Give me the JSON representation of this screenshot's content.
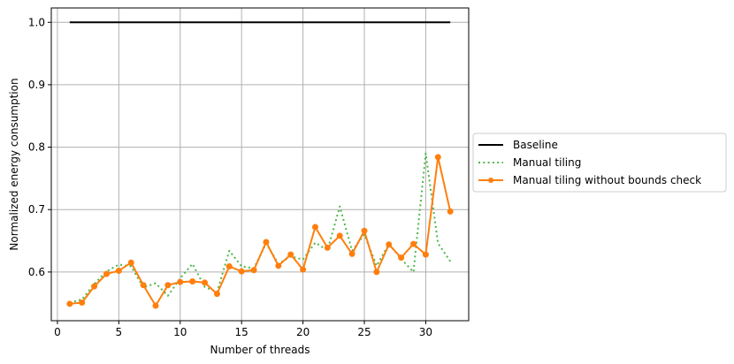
{
  "chart_data": {
    "type": "line",
    "xlabel": "Number of threads",
    "ylabel": "Normalized energy consumption",
    "xlim": [
      -0.5,
      33.5
    ],
    "ylim": [
      0.522,
      1.023
    ],
    "xticks": [
      0,
      5,
      10,
      15,
      20,
      25,
      30
    ],
    "yticks": [
      0.6,
      0.7,
      0.8,
      0.9,
      1.0
    ],
    "ytick_labels": [
      "0.6",
      "0.7",
      "0.8",
      "0.9",
      "1.0"
    ],
    "grid": true,
    "legend_position": "right-outside",
    "series": [
      {
        "name": "Baseline",
        "color": "#000000",
        "style": "solid",
        "x": [
          1,
          32
        ],
        "y": [
          1.0,
          1.0
        ]
      },
      {
        "name": "Manual tiling",
        "color": "#4db847",
        "style": "dotted",
        "x": [
          1,
          2,
          3,
          4,
          5,
          6,
          7,
          8,
          9,
          10,
          11,
          12,
          13,
          14,
          15,
          16,
          17,
          18,
          19,
          20,
          21,
          22,
          23,
          24,
          25,
          26,
          27,
          28,
          29,
          30,
          31,
          32
        ],
        "y": [
          0.551,
          0.556,
          0.581,
          0.601,
          0.612,
          0.609,
          0.575,
          0.582,
          0.562,
          0.59,
          0.613,
          0.576,
          0.568,
          0.634,
          0.609,
          0.606,
          0.646,
          0.613,
          0.625,
          0.62,
          0.647,
          0.635,
          0.705,
          0.634,
          0.66,
          0.61,
          0.645,
          0.621,
          0.6,
          0.79,
          0.646,
          0.617
        ]
      },
      {
        "name": "Manual tiling without bounds check",
        "color": "#ff7f0e",
        "style": "solid-marker",
        "x": [
          1,
          2,
          3,
          4,
          5,
          6,
          7,
          8,
          9,
          10,
          11,
          12,
          13,
          14,
          15,
          16,
          17,
          18,
          19,
          20,
          21,
          22,
          23,
          24,
          25,
          26,
          27,
          28,
          29,
          30,
          31,
          32
        ],
        "y": [
          0.549,
          0.551,
          0.577,
          0.597,
          0.602,
          0.615,
          0.579,
          0.546,
          0.579,
          0.584,
          0.585,
          0.583,
          0.565,
          0.609,
          0.601,
          0.603,
          0.648,
          0.61,
          0.628,
          0.604,
          0.672,
          0.639,
          0.658,
          0.629,
          0.666,
          0.6,
          0.644,
          0.623,
          0.645,
          0.628,
          0.784,
          0.697
        ]
      }
    ]
  }
}
